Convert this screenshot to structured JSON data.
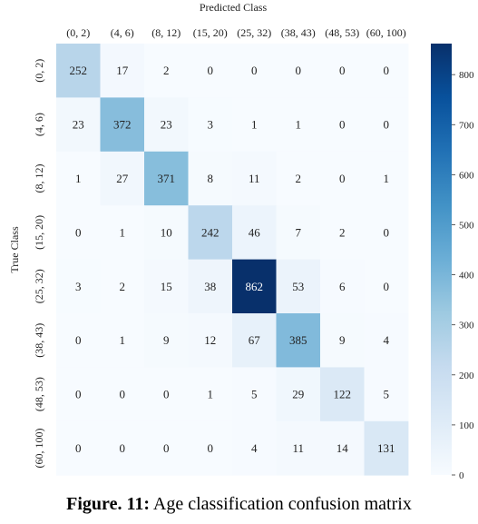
{
  "caption": {
    "label": "Figure. 11:",
    "text": " Age classification confusion matrix"
  },
  "chart_data": {
    "type": "heatmap",
    "title": "",
    "xlabel": "Predicted Class",
    "ylabel": "True Class",
    "x_categories": [
      "(0, 2)",
      "(4, 6)",
      "(8, 12)",
      "(15, 20)",
      "(25, 32)",
      "(38, 43)",
      "(48, 53)",
      "(60, 100)"
    ],
    "y_categories": [
      "(0, 2)",
      "(4, 6)",
      "(8, 12)",
      "(15, 20)",
      "(25, 32)",
      "(38, 43)",
      "(48, 53)",
      "(60, 100)"
    ],
    "values": [
      [
        252,
        17,
        2,
        0,
        0,
        0,
        0,
        0
      ],
      [
        23,
        372,
        23,
        3,
        1,
        1,
        0,
        0
      ],
      [
        1,
        27,
        371,
        8,
        11,
        2,
        0,
        1
      ],
      [
        0,
        1,
        10,
        242,
        46,
        7,
        2,
        0
      ],
      [
        3,
        2,
        15,
        38,
        862,
        53,
        6,
        0
      ],
      [
        0,
        1,
        9,
        12,
        67,
        385,
        9,
        4
      ],
      [
        0,
        0,
        0,
        1,
        5,
        29,
        122,
        5
      ],
      [
        0,
        0,
        0,
        0,
        4,
        11,
        14,
        131
      ]
    ],
    "colorbar": {
      "min": 0,
      "max": 862,
      "ticks": [
        0,
        100,
        200,
        300,
        400,
        500,
        600,
        700,
        800
      ],
      "colormap": "Blues",
      "colors": [
        "#f7fbff",
        "#deebf7",
        "#c6dbef",
        "#9ecae1",
        "#6baed6",
        "#4292c6",
        "#2171b5",
        "#08519c",
        "#08306b"
      ]
    },
    "xaxis_position": "top",
    "grid": false
  }
}
